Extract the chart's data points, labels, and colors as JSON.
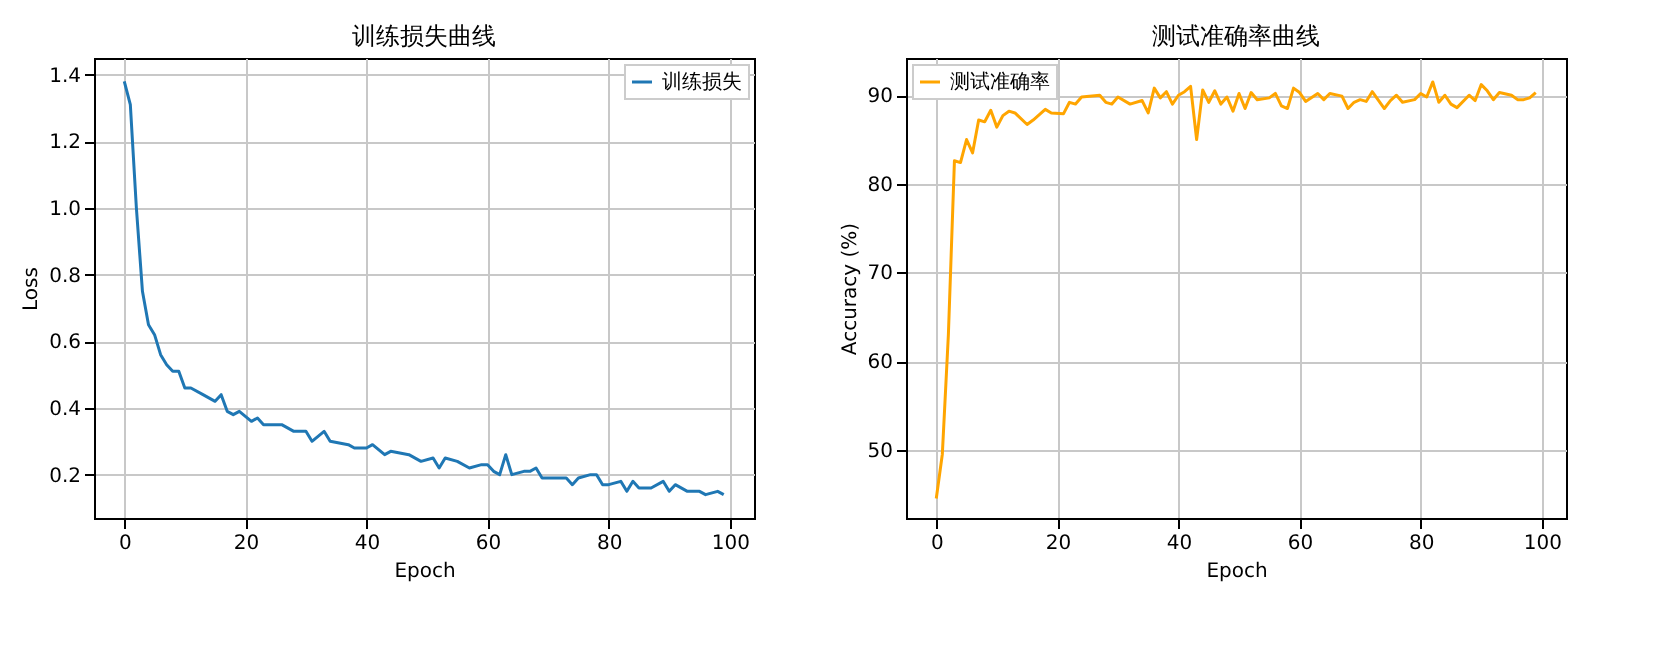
{
  "chart_data": [
    {
      "type": "line",
      "title": "训练损失曲线",
      "xlabel": "Epoch",
      "ylabel": "Loss",
      "xlim": [
        -5,
        104
      ],
      "xticks": [
        0,
        20,
        40,
        60,
        80,
        100
      ],
      "ylim": [
        0.07,
        1.45
      ],
      "yticks": [
        0.2,
        0.4,
        0.6,
        0.8,
        {
          "value": 1,
          "label": "1.0"
        },
        1.2,
        1.4
      ],
      "grid": true,
      "legend": "top right",
      "marker": "none",
      "line_style": "solid",
      "series": [
        {
          "name": "训练损失",
          "color": "#1f77b4",
          "x": [
            0,
            1,
            2,
            3,
            4,
            5,
            6,
            7,
            8,
            9,
            10,
            11,
            13,
            15,
            16,
            17,
            18,
            19,
            21,
            22,
            23,
            26,
            28,
            30,
            31,
            33,
            34,
            37,
            38,
            40,
            41,
            43,
            44,
            47,
            49,
            51,
            52,
            53,
            55,
            57,
            59,
            60,
            61,
            62,
            63,
            64,
            66,
            67,
            68,
            69,
            71,
            73,
            74,
            75,
            77,
            78,
            79,
            80,
            82,
            83,
            84,
            85,
            87,
            89,
            90,
            91,
            93,
            95,
            96,
            98,
            99
          ],
          "values": [
            1.38,
            1.31,
            1.0,
            0.75,
            0.65,
            0.62,
            0.56,
            0.53,
            0.51,
            0.51,
            0.46,
            0.46,
            0.44,
            0.42,
            0.44,
            0.39,
            0.38,
            0.39,
            0.36,
            0.37,
            0.35,
            0.35,
            0.33,
            0.33,
            0.3,
            0.33,
            0.3,
            0.29,
            0.28,
            0.28,
            0.29,
            0.26,
            0.27,
            0.26,
            0.24,
            0.25,
            0.22,
            0.25,
            0.24,
            0.22,
            0.23,
            0.23,
            0.21,
            0.2,
            0.26,
            0.2,
            0.21,
            0.21,
            0.22,
            0.19,
            0.19,
            0.19,
            0.17,
            0.19,
            0.2,
            0.2,
            0.17,
            0.17,
            0.18,
            0.15,
            0.18,
            0.16,
            0.16,
            0.18,
            0.15,
            0.17,
            0.15,
            0.15,
            0.14,
            0.15,
            0.14
          ]
        }
      ]
    },
    {
      "type": "line",
      "title": "测试准确率曲线",
      "xlabel": "Epoch",
      "ylabel": "Accuracy (%)",
      "xlim": [
        -5,
        104
      ],
      "xticks": [
        0,
        20,
        40,
        60,
        80,
        100
      ],
      "ylim": [
        42.3,
        94.2
      ],
      "yticks": [
        50,
        60,
        70,
        80,
        90
      ],
      "grid": true,
      "legend": "top left",
      "marker": "none",
      "line_style": "solid",
      "series": [
        {
          "name": "测试准确率",
          "color": "#ffa500",
          "x": [
            0,
            1,
            2,
            3,
            4,
            5,
            6,
            7,
            8,
            9,
            10,
            11,
            12,
            13,
            15,
            16,
            18,
            19,
            21,
            22,
            23,
            24,
            27,
            28,
            29,
            30,
            32,
            34,
            35,
            36,
            37,
            38,
            39,
            40,
            41,
            42,
            43,
            44,
            45,
            46,
            47,
            48,
            49,
            50,
            51,
            52,
            53,
            55,
            56,
            57,
            58,
            59,
            60,
            61,
            63,
            64,
            65,
            67,
            68,
            69,
            70,
            71,
            72,
            74,
            75,
            76,
            77,
            79,
            80,
            81,
            82,
            83,
            84,
            85,
            86,
            88,
            89,
            90,
            91,
            92,
            93,
            95,
            96,
            97,
            98,
            99
          ],
          "values": [
            44.5,
            49.5,
            63,
            82.6,
            82.4,
            85,
            83.5,
            87.2,
            87,
            88.3,
            86.4,
            87.7,
            88.2,
            88,
            86.7,
            87.2,
            88.4,
            88,
            87.9,
            89.2,
            89,
            89.8,
            90,
            89.2,
            89,
            89.8,
            89,
            89.4,
            88,
            90.8,
            89.7,
            90.4,
            89,
            90,
            90.4,
            91,
            85,
            90.6,
            89.2,
            90.5,
            89,
            89.8,
            88.2,
            90.2,
            88.5,
            90.3,
            89.5,
            89.7,
            90.2,
            88.8,
            88.5,
            90.8,
            90.3,
            89.3,
            90.2,
            89.5,
            90.2,
            89.9,
            88.5,
            89.2,
            89.5,
            89.3,
            90.4,
            88.5,
            89.4,
            90,
            89.2,
            89.5,
            90.2,
            89.8,
            91.5,
            89.2,
            90,
            89,
            88.6,
            90,
            89.4,
            91.2,
            90.5,
            89.5,
            90.3,
            90,
            89.5,
            89.5,
            89.7,
            90.3
          ]
        }
      ]
    }
  ]
}
